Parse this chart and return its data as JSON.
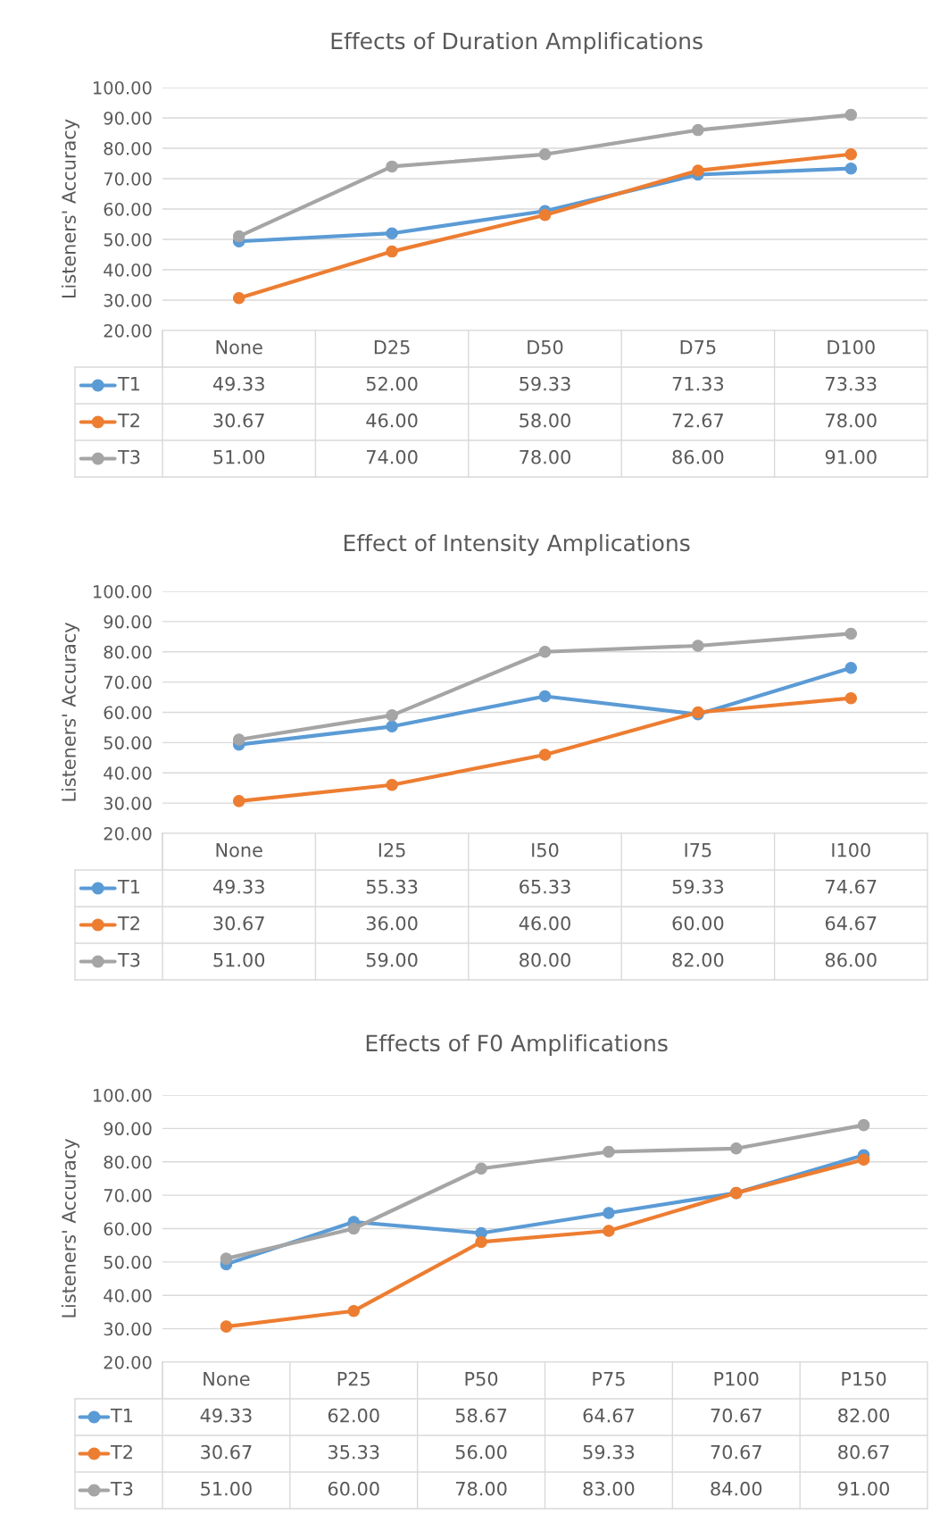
{
  "chart_data": [
    {
      "type": "line",
      "title": "Effects of Duration Amplifications",
      "ylabel": "Listeners' Accuracy",
      "categories": [
        "None",
        "D25",
        "D50",
        "D75",
        "D100"
      ],
      "ylim": [
        20,
        100
      ],
      "yticks": [
        {
          "value": 20,
          "label": "20.00"
        },
        {
          "value": 30,
          "label": "30.00"
        },
        {
          "value": 40,
          "label": "40.00"
        },
        {
          "value": 50,
          "label": "50.00"
        },
        {
          "value": 60,
          "label": "60.00"
        },
        {
          "value": 70,
          "label": "70.00"
        },
        {
          "value": 80,
          "label": "80.00"
        },
        {
          "value": 90,
          "label": "90.00"
        },
        {
          "value": 100,
          "label": "100.00"
        }
      ],
      "grid": "y",
      "legend": "bottom",
      "marker": "circle",
      "line_style": "solid",
      "series": [
        {
          "name": "T1",
          "color": "#5b9bd5",
          "values": [
            49.33,
            52.0,
            59.33,
            71.33,
            73.33
          ],
          "value_labels": [
            "49.33",
            "52.00",
            "59.33",
            "71.33",
            "73.33"
          ]
        },
        {
          "name": "T2",
          "color": "#ed7d31",
          "values": [
            30.67,
            46.0,
            58.0,
            72.67,
            78.0
          ],
          "value_labels": [
            "30.67",
            "46.00",
            "58.00",
            "72.67",
            "78.00"
          ]
        },
        {
          "name": "T3",
          "color": "#a5a5a5",
          "values": [
            51.0,
            74.0,
            78.0,
            86.0,
            91.0
          ],
          "value_labels": [
            "51.00",
            "74.00",
            "78.00",
            "86.00",
            "91.00"
          ]
        }
      ]
    },
    {
      "type": "line",
      "title": "Effect of Intensity Amplications",
      "ylabel": "Listeners' Accuracy",
      "categories": [
        "None",
        "I25",
        "I50",
        "I75",
        "I100"
      ],
      "ylim": [
        20,
        100
      ],
      "yticks": [
        {
          "value": 20,
          "label": "20.00"
        },
        {
          "value": 30,
          "label": "30.00"
        },
        {
          "value": 40,
          "label": "40.00"
        },
        {
          "value": 50,
          "label": "50.00"
        },
        {
          "value": 60,
          "label": "60.00"
        },
        {
          "value": 70,
          "label": "70.00"
        },
        {
          "value": 80,
          "label": "80.00"
        },
        {
          "value": 90,
          "label": "90.00"
        },
        {
          "value": 100,
          "label": "100.00"
        }
      ],
      "grid": "y",
      "legend": "bottom",
      "marker": "circle",
      "line_style": "solid",
      "series": [
        {
          "name": "T1",
          "color": "#5b9bd5",
          "values": [
            49.33,
            55.33,
            65.33,
            59.33,
            74.67
          ],
          "value_labels": [
            "49.33",
            "55.33",
            "65.33",
            "59.33",
            "74.67"
          ]
        },
        {
          "name": "T2",
          "color": "#ed7d31",
          "values": [
            30.67,
            36.0,
            46.0,
            60.0,
            64.67
          ],
          "value_labels": [
            "30.67",
            "36.00",
            "46.00",
            "60.00",
            "64.67"
          ]
        },
        {
          "name": "T3",
          "color": "#a5a5a5",
          "values": [
            51.0,
            59.0,
            80.0,
            82.0,
            86.0
          ],
          "value_labels": [
            "51.00",
            "59.00",
            "80.00",
            "82.00",
            "86.00"
          ]
        }
      ]
    },
    {
      "type": "line",
      "title": "Effects of F0 Amplifications",
      "ylabel": "Listeners' Accuracy",
      "categories": [
        "None",
        "P25",
        "P50",
        "P75",
        "P100",
        "P150"
      ],
      "ylim": [
        20,
        100
      ],
      "yticks": [
        {
          "value": 20,
          "label": "20.00"
        },
        {
          "value": 30,
          "label": "30.00"
        },
        {
          "value": 40,
          "label": "40.00"
        },
        {
          "value": 50,
          "label": "50.00"
        },
        {
          "value": 60,
          "label": "60.00"
        },
        {
          "value": 70,
          "label": "70.00"
        },
        {
          "value": 80,
          "label": "80.00"
        },
        {
          "value": 90,
          "label": "90.00"
        },
        {
          "value": 100,
          "label": "100.00"
        }
      ],
      "grid": "y",
      "legend": "bottom",
      "marker": "circle",
      "line_style": "solid",
      "series": [
        {
          "name": "T1",
          "color": "#5b9bd5",
          "values": [
            49.33,
            62.0,
            58.67,
            64.67,
            70.67,
            82.0
          ],
          "value_labels": [
            "49.33",
            "62.00",
            "58.67",
            "64.67",
            "70.67",
            "82.00"
          ]
        },
        {
          "name": "T2",
          "color": "#ed7d31",
          "values": [
            30.67,
            35.33,
            56.0,
            59.33,
            70.67,
            80.67
          ],
          "value_labels": [
            "30.67",
            "35.33",
            "56.00",
            "59.33",
            "70.67",
            "80.67"
          ]
        },
        {
          "name": "T3",
          "color": "#a5a5a5",
          "values": [
            51.0,
            60.0,
            78.0,
            83.0,
            84.0,
            91.0
          ],
          "value_labels": [
            "51.00",
            "60.00",
            "78.00",
            "83.00",
            "84.00",
            "91.00"
          ]
        }
      ]
    }
  ]
}
